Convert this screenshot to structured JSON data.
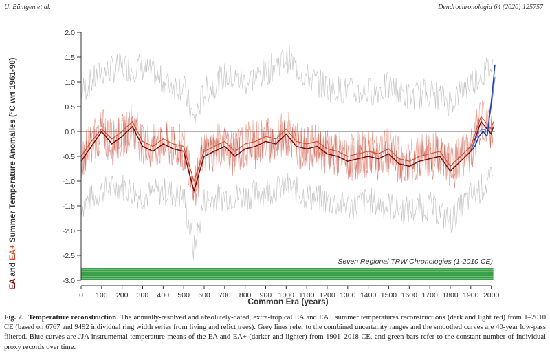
{
  "header": {
    "author": "U. Büntgen et al.",
    "journal": "Dendrochronologia 64 (2020) 125757"
  },
  "figure": {
    "ylabel_parts": [
      "EA",
      " and ",
      "EA+",
      " Summer Temperature Anomalies (°C wrt 1961-90)"
    ],
    "xlabel": "Common Era (years)",
    "bars_label": "Seven Regional TRW Chronologies (1-2010 CE)"
  },
  "caption": {
    "label": "Fig. 2.",
    "title": "Temperature reconstruction",
    "text": ". The annually-resolved and absolutely-dated, extra-tropical EA and EA+ summer temperatures reconstructions (dark and light red) from 1–2010 CE (based on 6767 and 9492 individual ring width series from living and relict trees). Grey lines refer to the combined uncertainty ranges and the smoothed curves are 40-year low-pass filtered. Blue curves are JJA instrumental temperature means of the EA and EA+ (darker and lighter) from 1901–2018 CE, and green bars refer to the constant number of individual proxy records over time."
  },
  "chart_data": {
    "type": "line",
    "xlabel": "Common Era (years)",
    "ylabel": "EA and EA+ Summer Temperature Anomalies (°C wrt 1961-90)",
    "xlim": [
      0,
      2018
    ],
    "ylim": [
      -3.0,
      2.0
    ],
    "xticks": [
      0,
      100,
      200,
      300,
      400,
      500,
      600,
      700,
      800,
      900,
      1000,
      1100,
      1200,
      1300,
      1400,
      1500,
      1600,
      1700,
      1800,
      1900,
      2000
    ],
    "yticks": [
      2.0,
      1.5,
      1.0,
      0.5,
      0.0,
      -0.5,
      -1.0,
      -1.5,
      -2.0,
      -2.5,
      -3.0
    ],
    "zero_line": true,
    "colors": {
      "ea_smooth": "#7a0a0a",
      "ea_plus": "#d94a2a",
      "uncertainty": "#b8b8b8",
      "instrumental": "#1f3fa8",
      "bars": "#3aa04a"
    },
    "series": [
      {
        "name": "EA",
        "x": [
          0,
          50,
          100,
          150,
          200,
          250,
          300,
          350,
          400,
          450,
          500,
          550,
          600,
          650,
          700,
          750,
          800,
          850,
          900,
          950,
          1000,
          1050,
          1100,
          1150,
          1200,
          1250,
          1300,
          1350,
          1400,
          1450,
          1500,
          1550,
          1600,
          1650,
          1700,
          1750,
          1800,
          1850,
          1900,
          1950,
          2000,
          2010
        ],
        "values": [
          -0.6,
          -0.3,
          0.0,
          -0.25,
          -0.1,
          0.1,
          -0.3,
          -0.4,
          -0.25,
          -0.35,
          -0.4,
          -1.2,
          -0.5,
          -0.4,
          -0.3,
          -0.5,
          -0.35,
          -0.3,
          -0.2,
          -0.25,
          -0.05,
          -0.3,
          -0.35,
          -0.3,
          -0.45,
          -0.5,
          -0.6,
          -0.55,
          -0.5,
          -0.55,
          -0.45,
          -0.65,
          -0.7,
          -0.6,
          -0.55,
          -0.5,
          -0.8,
          -0.6,
          -0.4,
          0.2,
          -0.05,
          0.1
        ]
      },
      {
        "name": "EA+",
        "x": [
          0,
          50,
          100,
          150,
          200,
          250,
          300,
          350,
          400,
          450,
          500,
          550,
          600,
          650,
          700,
          750,
          800,
          850,
          900,
          950,
          1000,
          1050,
          1100,
          1150,
          1200,
          1250,
          1300,
          1350,
          1400,
          1450,
          1500,
          1550,
          1600,
          1650,
          1700,
          1750,
          1800,
          1850,
          1900,
          1950,
          2000,
          2010
        ],
        "values": [
          -0.5,
          -0.2,
          0.05,
          -0.15,
          0.0,
          0.2,
          -0.2,
          -0.3,
          -0.15,
          -0.25,
          -0.3,
          -1.0,
          -0.4,
          -0.3,
          -0.2,
          -0.4,
          -0.25,
          -0.2,
          -0.1,
          -0.15,
          0.05,
          -0.2,
          -0.25,
          -0.2,
          -0.35,
          -0.4,
          -0.5,
          -0.45,
          -0.4,
          -0.45,
          -0.35,
          -0.55,
          -0.6,
          -0.5,
          -0.45,
          -0.4,
          -0.7,
          -0.5,
          -0.3,
          0.3,
          0.05,
          0.2
        ]
      },
      {
        "name": "Instrumental EA",
        "x": [
          1901,
          1920,
          1940,
          1960,
          1980,
          2000,
          2018
        ],
        "values": [
          -0.4,
          -0.3,
          -0.1,
          0.0,
          -0.1,
          0.6,
          1.35
        ]
      },
      {
        "name": "Instrumental EA+",
        "x": [
          1901,
          1920,
          1940,
          1960,
          1980,
          2000,
          2018
        ],
        "values": [
          -0.35,
          -0.2,
          0.0,
          0.05,
          0.0,
          0.5,
          1.1
        ]
      }
    ],
    "uncertainty_range": {
      "x": [
        0,
        100,
        200,
        300,
        400,
        500,
        550,
        600,
        700,
        800,
        900,
        1000,
        1100,
        1200,
        1300,
        1400,
        1500,
        1600,
        1700,
        1800,
        1900,
        2000
      ],
      "lower": [
        -1.5,
        -1.2,
        -1.1,
        -1.3,
        -1.2,
        -1.3,
        -2.4,
        -1.4,
        -1.3,
        -1.3,
        -1.2,
        -1.1,
        -1.3,
        -1.4,
        -1.5,
        -1.4,
        -1.5,
        -1.6,
        -1.5,
        -1.8,
        -1.3,
        -1.0
      ],
      "upper": [
        0.8,
        1.2,
        1.3,
        1.3,
        1.0,
        0.9,
        0.2,
        0.8,
        1.1,
        1.0,
        1.2,
        1.5,
        1.1,
        0.9,
        0.8,
        0.8,
        0.9,
        0.7,
        0.8,
        0.6,
        1.0,
        1.3
      ]
    },
    "proxy_records": {
      "count": 7,
      "x_start": 1,
      "x_end": 2010
    }
  }
}
